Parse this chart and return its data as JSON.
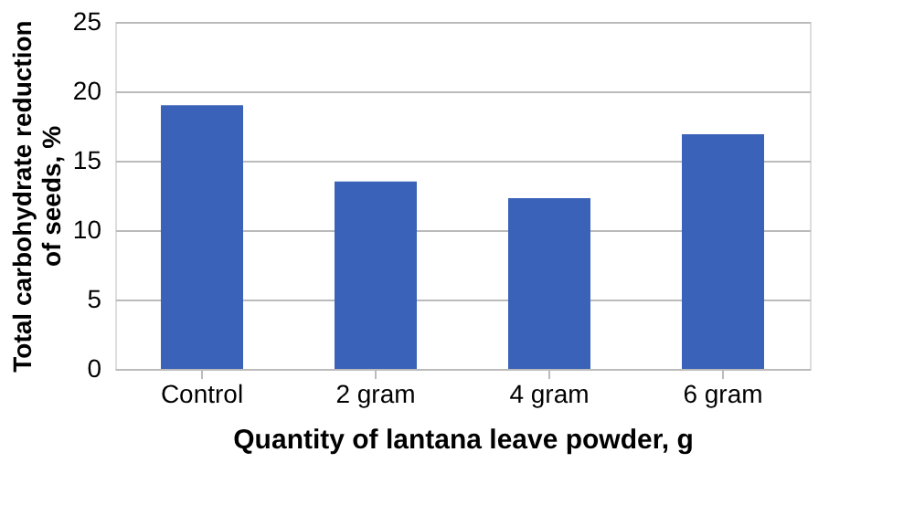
{
  "chart_data": {
    "type": "bar",
    "xlabel": "Quantity of lantana leave powder, g",
    "ylabel": [
      "Total carbohydrate reduction",
      "of seeds, %"
    ],
    "categories": [
      "Control",
      "2 gram",
      "4 gram",
      "6 gram"
    ],
    "values": [
      19,
      13.5,
      12.3,
      16.9
    ],
    "color": "#3a62b8",
    "ylim": [
      0,
      25
    ],
    "yticks": [
      0,
      5,
      10,
      15,
      20,
      25
    ],
    "grid": "y"
  }
}
